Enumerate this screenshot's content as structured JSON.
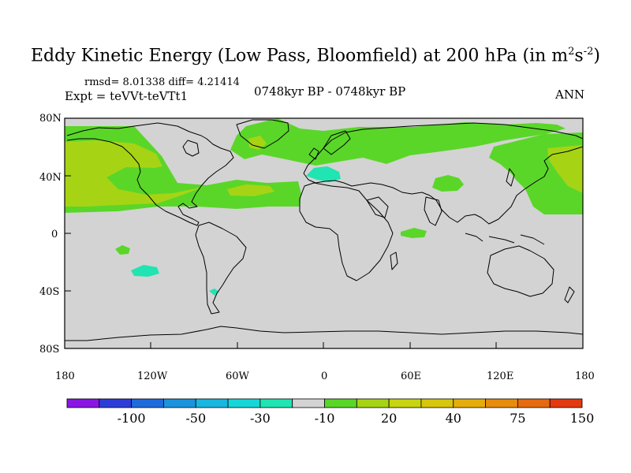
{
  "title": {
    "main": "Eddy Kinetic Energy (Low Pass, Bloomfield) at 200 hPa (in m",
    "sup1": "2",
    "mid": "s",
    "sup2": "-2",
    "end": ")"
  },
  "stats": "rmsd= 8.01338 diff= 4.21414",
  "experiment": "Expt = teVVt-teVTt1",
  "period": "0748kyr BP - 0748kyr BP",
  "season": "ANN",
  "lat_ticks": [
    "80N",
    "40N",
    "0",
    "40S",
    "80S"
  ],
  "lon_ticks": [
    "180",
    "120W",
    "60W",
    "0",
    "60E",
    "120E",
    "180"
  ],
  "colorbar": {
    "colors": [
      "#8a16e3",
      "#2d3ed8",
      "#1e6bdc",
      "#1c93dd",
      "#19b6e0",
      "#17d6d8",
      "#20e4b2",
      "#d3d3d3",
      "#5ad629",
      "#a6d415",
      "#c8d410",
      "#d8c60d",
      "#e4ad0c",
      "#e78c0d",
      "#e66a10",
      "#e33a10"
    ],
    "labels": [
      "-100",
      "-50",
      "-30",
      "-10",
      "20",
      "40",
      "75",
      "150"
    ]
  },
  "map_colors": {
    "background": "#d3d3d3",
    "green": "#5ad629",
    "yellow_green": "#a6d415",
    "cyan": "#20e4b2"
  }
}
